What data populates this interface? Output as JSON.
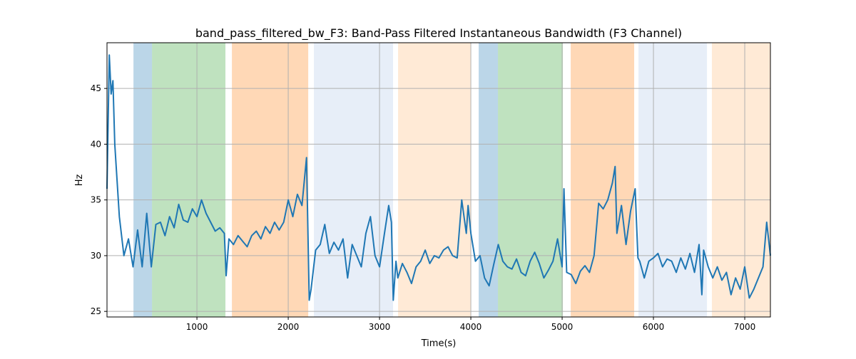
{
  "chart_data": {
    "type": "line",
    "title": "band_pass_filtered_bw_F3: Band-Pass Filtered Instantaneous Bandwidth (F3 Channel)",
    "xlabel": "Time(s)",
    "ylabel": "Hz",
    "xlim": [
      15,
      7281
    ],
    "ylim": [
      24.5,
      49.1
    ],
    "xticks": [
      1000,
      2000,
      3000,
      4000,
      5000,
      6000,
      7000
    ],
    "yticks": [
      25,
      30,
      35,
      40,
      45
    ],
    "grid": true,
    "line_color": "#1f77b4",
    "spans": [
      {
        "start": 305,
        "end": 508,
        "color": "#1f77b4",
        "opacity": 0.3
      },
      {
        "start": 508,
        "end": 1312,
        "color": "#2ca02c",
        "opacity": 0.3
      },
      {
        "start": 1383,
        "end": 2219,
        "color": "#ff7f0e",
        "opacity": 0.3
      },
      {
        "start": 2281,
        "end": 3148,
        "color": "#aec7e8",
        "opacity": 0.3
      },
      {
        "start": 3203,
        "end": 4000,
        "color": "#ffbb78",
        "opacity": 0.3
      },
      {
        "start": 4086,
        "end": 4297,
        "color": "#1f77b4",
        "opacity": 0.3
      },
      {
        "start": 4297,
        "end": 5008,
        "color": "#2ca02c",
        "opacity": 0.3
      },
      {
        "start": 5094,
        "end": 5789,
        "color": "#ff7f0e",
        "opacity": 0.3
      },
      {
        "start": 5836,
        "end": 6586,
        "color": "#aec7e8",
        "opacity": 0.3
      },
      {
        "start": 6640,
        "end": 7281,
        "color": "#ffbb78",
        "opacity": 0.3
      }
    ],
    "series": [
      {
        "name": "band_pass_filtered_bw_F3",
        "x": [
          15,
          40,
          60,
          80,
          100,
          150,
          200,
          250,
          300,
          350,
          400,
          450,
          500,
          550,
          600,
          650,
          700,
          750,
          800,
          850,
          900,
          950,
          1000,
          1050,
          1100,
          1150,
          1200,
          1250,
          1300,
          1320,
          1350,
          1400,
          1450,
          1500,
          1550,
          1600,
          1650,
          1700,
          1750,
          1800,
          1850,
          1900,
          1950,
          2000,
          2050,
          2100,
          2150,
          2200,
          2230,
          2250,
          2300,
          2350,
          2400,
          2450,
          2500,
          2550,
          2600,
          2650,
          2700,
          2750,
          2800,
          2850,
          2900,
          2950,
          3000,
          3050,
          3100,
          3130,
          3150,
          3180,
          3200,
          3250,
          3300,
          3350,
          3400,
          3450,
          3500,
          3550,
          3600,
          3650,
          3700,
          3750,
          3800,
          3850,
          3900,
          3950,
          3970,
          4000,
          4050,
          4100,
          4150,
          4200,
          4250,
          4300,
          4350,
          4400,
          4450,
          4500,
          4550,
          4600,
          4650,
          4700,
          4750,
          4800,
          4850,
          4900,
          4950,
          5000,
          5020,
          5050,
          5100,
          5150,
          5200,
          5250,
          5300,
          5350,
          5400,
          5450,
          5500,
          5550,
          5580,
          5600,
          5650,
          5700,
          5750,
          5800,
          5830,
          5850,
          5900,
          5950,
          6000,
          6050,
          6100,
          6150,
          6200,
          6250,
          6300,
          6350,
          6400,
          6450,
          6500,
          6530,
          6550,
          6600,
          6650,
          6700,
          6750,
          6800,
          6850,
          6900,
          6950,
          7000,
          7050,
          7100,
          7150,
          7200,
          7240,
          7281
        ],
        "y": [
          36,
          48,
          44.5,
          45.7,
          40,
          33.5,
          30,
          31.5,
          29,
          32.3,
          29,
          33.8,
          29,
          32.8,
          33,
          31.8,
          33.5,
          32.5,
          34.6,
          33.2,
          33,
          34.2,
          33.5,
          35,
          33.8,
          33,
          32.2,
          32.5,
          32,
          28.2,
          31.5,
          31,
          31.8,
          31.3,
          30.8,
          31.8,
          32.2,
          31.5,
          32.6,
          32,
          33,
          32.3,
          33,
          35,
          33.5,
          35.5,
          34.5,
          38.8,
          26,
          27,
          30.5,
          31,
          32.8,
          30.2,
          31.2,
          30.5,
          31.5,
          28,
          31,
          30,
          29,
          32,
          33.5,
          30,
          29,
          31.8,
          34.5,
          33,
          26,
          29.5,
          28,
          29.3,
          28.5,
          27.5,
          29,
          29.5,
          30.5,
          29.3,
          30,
          29.8,
          30.5,
          30.8,
          30,
          29.8,
          35,
          32,
          34.5,
          32,
          29.5,
          30,
          28,
          27.3,
          29.2,
          31,
          29.5,
          29,
          28.8,
          29.7,
          28.5,
          28.2,
          29.5,
          30.3,
          29.3,
          28,
          28.7,
          29.5,
          31.5,
          29,
          36,
          28.5,
          28.3,
          27.5,
          28.6,
          29.1,
          28.5,
          30,
          34.7,
          34.2,
          35,
          36.5,
          38,
          32,
          34.5,
          31,
          34,
          36,
          29.8,
          29.5,
          28,
          29.5,
          29.8,
          30.2,
          29,
          29.7,
          29.5,
          28.5,
          29.8,
          28.8,
          30.2,
          28.5,
          31,
          26.5,
          30.5,
          29,
          28,
          29,
          27.8,
          28.5,
          26.5,
          28,
          27,
          29,
          26.2,
          27,
          28,
          29,
          33,
          30
        ]
      }
    ]
  }
}
